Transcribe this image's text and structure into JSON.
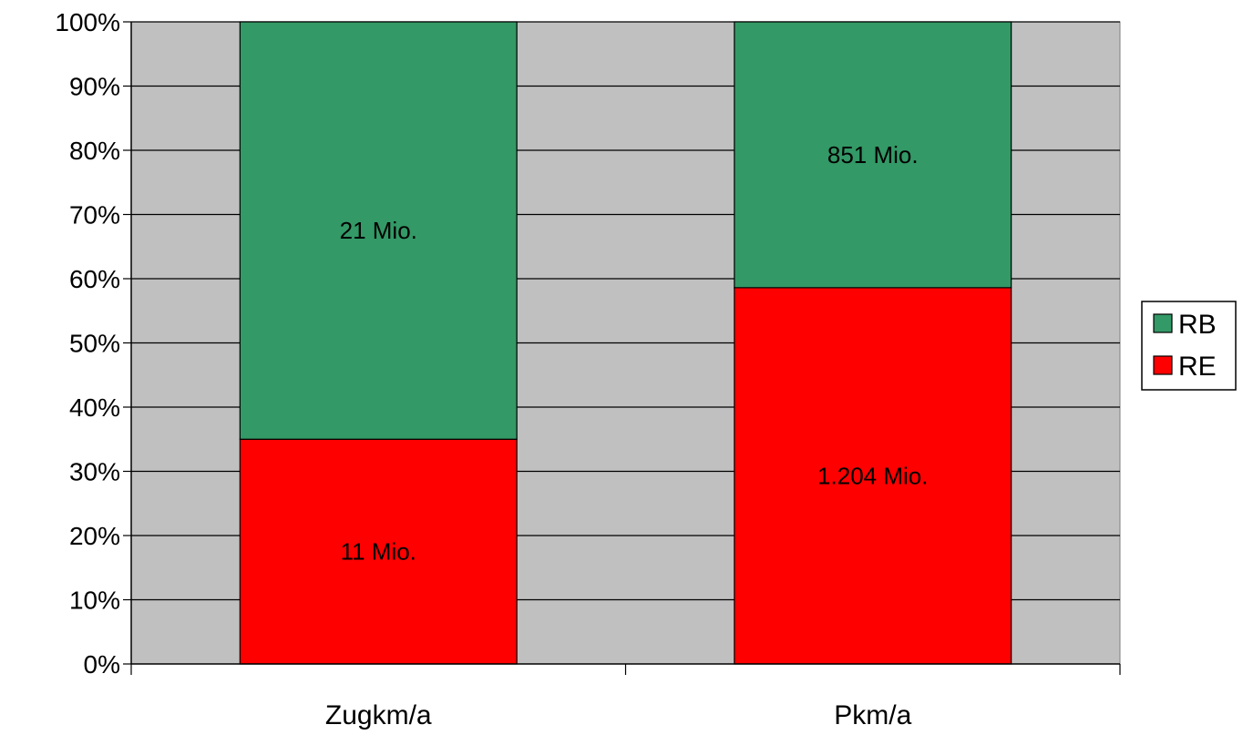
{
  "chart_data": {
    "type": "bar",
    "stacked": true,
    "normalized": true,
    "categories": [
      "Zugkm/a",
      "Pkm/a"
    ],
    "series": [
      {
        "name": "RE",
        "values": [
          35,
          58.6
        ],
        "labels": [
          "11 Mio.",
          "1.204 Mio."
        ],
        "color": "#ff0000"
      },
      {
        "name": "RB",
        "values": [
          65,
          41.4
        ],
        "labels": [
          "21 Mio.",
          "851 Mio."
        ],
        "color": "#339966"
      }
    ],
    "ylim": [
      0,
      100
    ],
    "yticks": [
      "0%",
      "10%",
      "20%",
      "30%",
      "40%",
      "50%",
      "60%",
      "70%",
      "80%",
      "90%",
      "100%"
    ],
    "grid": true,
    "legend": "right",
    "legend_order": [
      "RB",
      "RE"
    ],
    "plot_background": "#c0c0c0"
  }
}
